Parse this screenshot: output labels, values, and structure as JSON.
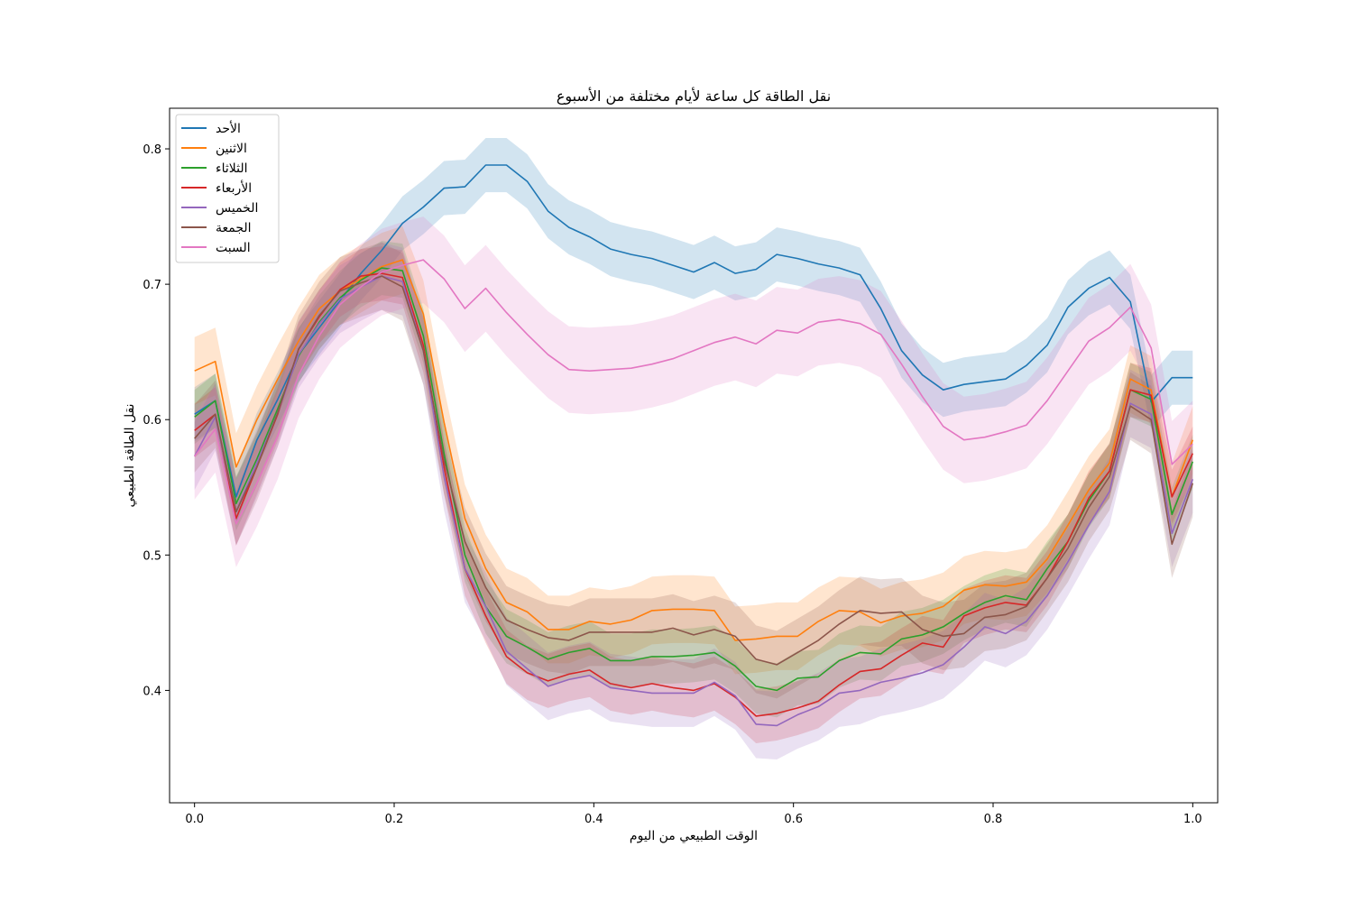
{
  "chart_data": {
    "type": "line",
    "title": "نقل الطاقة كل ساعة لأيام مختلفة من الأسبوع",
    "xlabel": "الوقت الطبيعي من اليوم",
    "ylabel": "نقل الطاقة الطبيعي",
    "xlim": [
      -0.025,
      1.025
    ],
    "ylim": [
      0.317,
      0.83
    ],
    "xticks": [
      0.0,
      0.2,
      0.4,
      0.6,
      0.8,
      1.0
    ],
    "xtick_labels": [
      "0.0",
      "0.2",
      "0.4",
      "0.6",
      "0.8",
      "1.0"
    ],
    "yticks": [
      0.4,
      0.5,
      0.6,
      0.7,
      0.8
    ],
    "ytick_labels": [
      "0.4",
      "0.5",
      "0.6",
      "0.7",
      "0.8"
    ],
    "legend_position": "top-left",
    "x": [
      0.0,
      0.0208,
      0.0417,
      0.0625,
      0.0833,
      0.1042,
      0.125,
      0.1458,
      0.1667,
      0.1875,
      0.2083,
      0.2292,
      0.25,
      0.2708,
      0.2917,
      0.3125,
      0.3333,
      0.3542,
      0.375,
      0.3958,
      0.4167,
      0.4375,
      0.4583,
      0.4792,
      0.5,
      0.5208,
      0.5417,
      0.5625,
      0.5833,
      0.6042,
      0.625,
      0.6458,
      0.6667,
      0.6875,
      0.7083,
      0.7292,
      0.75,
      0.7708,
      0.7917,
      0.8125,
      0.8333,
      0.8542,
      0.875,
      0.8958,
      0.9167,
      0.9375,
      0.9583,
      0.9792,
      1.0
    ],
    "series": [
      {
        "name": "الأحد",
        "color": "#1f77b4",
        "band": 0.02,
        "values": [
          0.604,
          0.614,
          0.543,
          0.585,
          0.615,
          0.648,
          0.668,
          0.688,
          0.708,
          0.725,
          0.745,
          0.757,
          0.771,
          0.772,
          0.788,
          0.788,
          0.776,
          0.754,
          0.742,
          0.735,
          0.726,
          0.722,
          0.719,
          0.714,
          0.709,
          0.716,
          0.708,
          0.711,
          0.722,
          0.719,
          0.715,
          0.712,
          0.707,
          0.682,
          0.651,
          0.633,
          0.622,
          0.626,
          0.628,
          0.63,
          0.64,
          0.655,
          0.683,
          0.697,
          0.705,
          0.687,
          0.613,
          0.631,
          0.631
        ]
      },
      {
        "name": "الاثنين",
        "color": "#ff7f0e",
        "band": 0.025,
        "values": [
          0.636,
          0.643,
          0.565,
          0.6,
          0.63,
          0.658,
          0.682,
          0.695,
          0.704,
          0.713,
          0.718,
          0.678,
          0.598,
          0.527,
          0.49,
          0.465,
          0.458,
          0.445,
          0.445,
          0.451,
          0.449,
          0.452,
          0.459,
          0.46,
          0.46,
          0.459,
          0.437,
          0.438,
          0.44,
          0.44,
          0.451,
          0.459,
          0.458,
          0.45,
          0.455,
          0.457,
          0.462,
          0.474,
          0.478,
          0.477,
          0.48,
          0.497,
          0.522,
          0.548,
          0.568,
          0.63,
          0.622,
          0.543,
          0.585
        ]
      },
      {
        "name": "الثلاثاء",
        "color": "#2ca02c",
        "band": 0.02,
        "values": [
          0.602,
          0.614,
          0.538,
          0.571,
          0.608,
          0.647,
          0.672,
          0.69,
          0.703,
          0.712,
          0.71,
          0.662,
          0.575,
          0.5,
          0.462,
          0.44,
          0.432,
          0.423,
          0.428,
          0.431,
          0.422,
          0.422,
          0.425,
          0.425,
          0.426,
          0.428,
          0.418,
          0.403,
          0.4,
          0.409,
          0.41,
          0.422,
          0.428,
          0.427,
          0.438,
          0.441,
          0.447,
          0.457,
          0.465,
          0.47,
          0.467,
          0.49,
          0.51,
          0.54,
          0.562,
          0.622,
          0.615,
          0.53,
          0.569
        ]
      },
      {
        "name": "الأربعاء",
        "color": "#d62728",
        "band": 0.02,
        "values": [
          0.592,
          0.604,
          0.527,
          0.565,
          0.604,
          0.652,
          0.676,
          0.696,
          0.706,
          0.708,
          0.705,
          0.655,
          0.565,
          0.49,
          0.455,
          0.425,
          0.413,
          0.407,
          0.412,
          0.415,
          0.405,
          0.402,
          0.405,
          0.402,
          0.4,
          0.405,
          0.395,
          0.381,
          0.383,
          0.387,
          0.392,
          0.404,
          0.414,
          0.416,
          0.426,
          0.435,
          0.432,
          0.455,
          0.461,
          0.465,
          0.463,
          0.483,
          0.51,
          0.542,
          0.562,
          0.622,
          0.618,
          0.543,
          0.575
        ]
      },
      {
        "name": "الخميس",
        "color": "#9467bd",
        "band": 0.025,
        "values": [
          0.573,
          0.602,
          0.532,
          0.568,
          0.605,
          0.648,
          0.671,
          0.689,
          0.698,
          0.706,
          0.702,
          0.651,
          0.558,
          0.49,
          0.462,
          0.429,
          0.416,
          0.403,
          0.408,
          0.411,
          0.402,
          0.4,
          0.398,
          0.398,
          0.398,
          0.406,
          0.396,
          0.375,
          0.374,
          0.382,
          0.388,
          0.398,
          0.4,
          0.406,
          0.409,
          0.413,
          0.419,
          0.432,
          0.447,
          0.442,
          0.451,
          0.47,
          0.495,
          0.522,
          0.547,
          0.612,
          0.604,
          0.516,
          0.556
        ]
      },
      {
        "name": "الجمعة",
        "color": "#8c564b",
        "band": 0.025,
        "values": [
          0.586,
          0.604,
          0.532,
          0.565,
          0.605,
          0.652,
          0.677,
          0.695,
          0.701,
          0.706,
          0.698,
          0.651,
          0.57,
          0.51,
          0.476,
          0.452,
          0.445,
          0.439,
          0.437,
          0.443,
          0.443,
          0.443,
          0.443,
          0.446,
          0.441,
          0.445,
          0.44,
          0.423,
          0.419,
          0.428,
          0.437,
          0.449,
          0.459,
          0.457,
          0.458,
          0.445,
          0.44,
          0.442,
          0.454,
          0.456,
          0.462,
          0.483,
          0.505,
          0.535,
          0.558,
          0.61,
          0.6,
          0.508,
          0.553
        ]
      },
      {
        "name": "السبت",
        "color": "#e377c2",
        "band": 0.032,
        "values": [
          0.573,
          0.593,
          0.523,
          0.553,
          0.588,
          0.633,
          0.662,
          0.685,
          0.698,
          0.709,
          0.714,
          0.718,
          0.704,
          0.682,
          0.697,
          0.679,
          0.663,
          0.648,
          0.637,
          0.636,
          0.637,
          0.638,
          0.641,
          0.645,
          0.651,
          0.657,
          0.661,
          0.656,
          0.666,
          0.664,
          0.672,
          0.674,
          0.671,
          0.663,
          0.641,
          0.617,
          0.595,
          0.585,
          0.587,
          0.591,
          0.596,
          0.614,
          0.636,
          0.658,
          0.668,
          0.683,
          0.653,
          0.567,
          0.582
        ]
      }
    ]
  }
}
